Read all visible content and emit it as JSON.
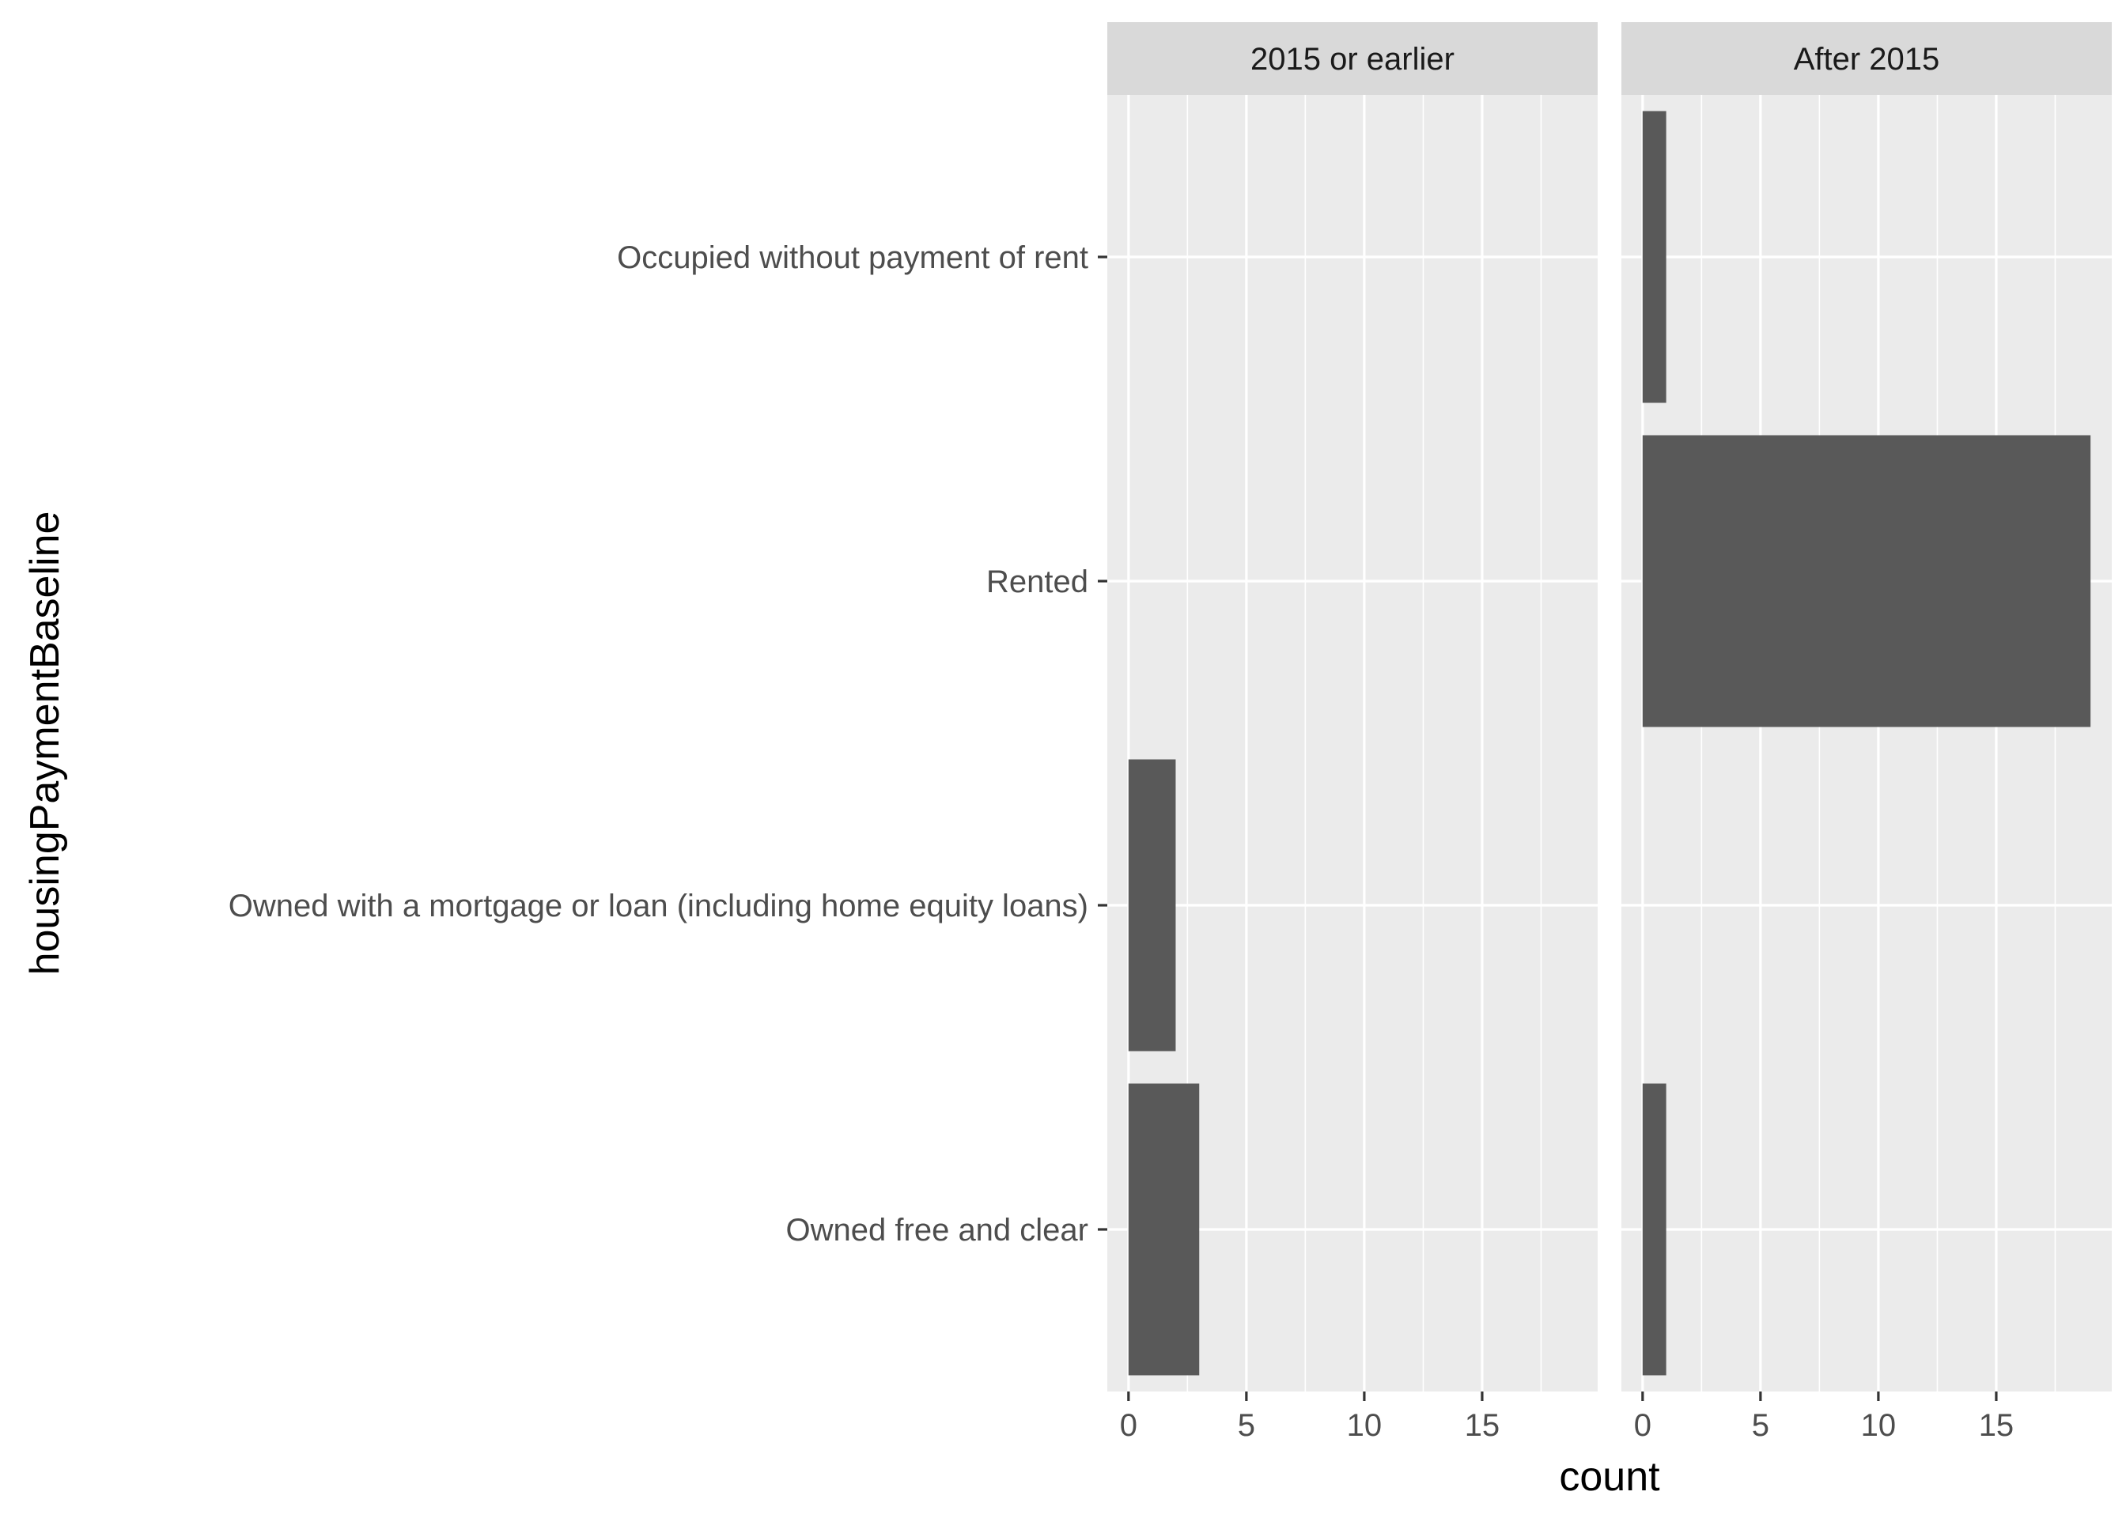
{
  "chart_data": {
    "type": "bar",
    "orientation": "horizontal",
    "facet_variable_levels": [
      "2015 or earlier",
      "After 2015"
    ],
    "categories": [
      "Occupied without payment of rent",
      "Rented",
      "Owned with a mortgage or loan (including home equity loans)",
      "Owned free and clear"
    ],
    "panels": [
      {
        "label": "2015 or earlier",
        "values": [
          0,
          0,
          2,
          3
        ]
      },
      {
        "label": "After 2015",
        "values": [
          1,
          19,
          0,
          1
        ]
      }
    ],
    "xlabel": "count",
    "ylabel": "housingPaymentBaseline",
    "xlim": [
      -0.9,
      19.9
    ],
    "xticks": [
      0,
      5,
      10,
      15
    ],
    "xtick_labels": [
      "0",
      "5",
      "10",
      "15"
    ],
    "grid": true,
    "colors": {
      "bar": "#595959",
      "panel_background": "#ebebeb",
      "grid": "#ffffff",
      "strip_background": "#d9d9d9",
      "tick_label": "#4d4d4d"
    }
  }
}
